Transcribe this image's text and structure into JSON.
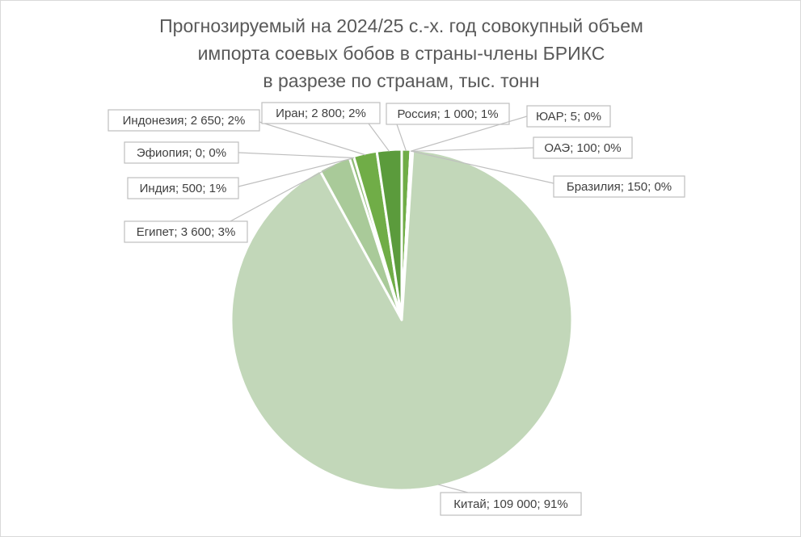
{
  "chart_data": {
    "type": "pie",
    "title_lines": [
      "Прогнозируемый на 2024/25 с.-х. год совокупный объем",
      "импорта соевых бобов в страны-члены БРИКС",
      "в разрезе по странам, тыс. тонн"
    ],
    "slices": [
      {
        "label": "Россия; 1 000; 1%",
        "name": "Россия",
        "value": 1000,
        "percent": "1%",
        "color": "#70ad47"
      },
      {
        "label": "ЮАР; 5; 0%",
        "name": "ЮАР",
        "value": 5,
        "percent": "0%",
        "color": "#548235"
      },
      {
        "label": "ОАЭ; 100; 0%",
        "name": "ОАЭ",
        "value": 100,
        "percent": "0%",
        "color": "#e2efda"
      },
      {
        "label": "Бразилия; 150; 0%",
        "name": "Бразилия",
        "value": 150,
        "percent": "0%",
        "color": "#a9d08e"
      },
      {
        "label": "Китай; 109 000; 91%",
        "name": "Китай",
        "value": 109000,
        "percent": "91%",
        "color": "#c2d7b9"
      },
      {
        "label": "Египет; 3 600; 3%",
        "name": "Египет",
        "value": 3600,
        "percent": "3%",
        "color": "#a9ca99"
      },
      {
        "label": "Индия; 500; 1%",
        "name": "Индия",
        "value": 500,
        "percent": "1%",
        "color": "#8fbb77"
      },
      {
        "label": "Эфиопия; 0; 0%",
        "name": "Эфиопия",
        "value": 0,
        "percent": "0%",
        "color": "#6aa84f"
      },
      {
        "label": "Индонезия; 2 650; 2%",
        "name": "Индонезия",
        "value": 2650,
        "percent": "2%",
        "color": "#70ad47"
      },
      {
        "label": "Иран; 2 800; 2%",
        "name": "Иран",
        "value": 2800,
        "percent": "2%",
        "color": "#5b9b3c"
      }
    ],
    "start_angle_deg": 0,
    "direction": "clockwise",
    "label_style": "callout boxes with leader lines",
    "legend": "none"
  }
}
